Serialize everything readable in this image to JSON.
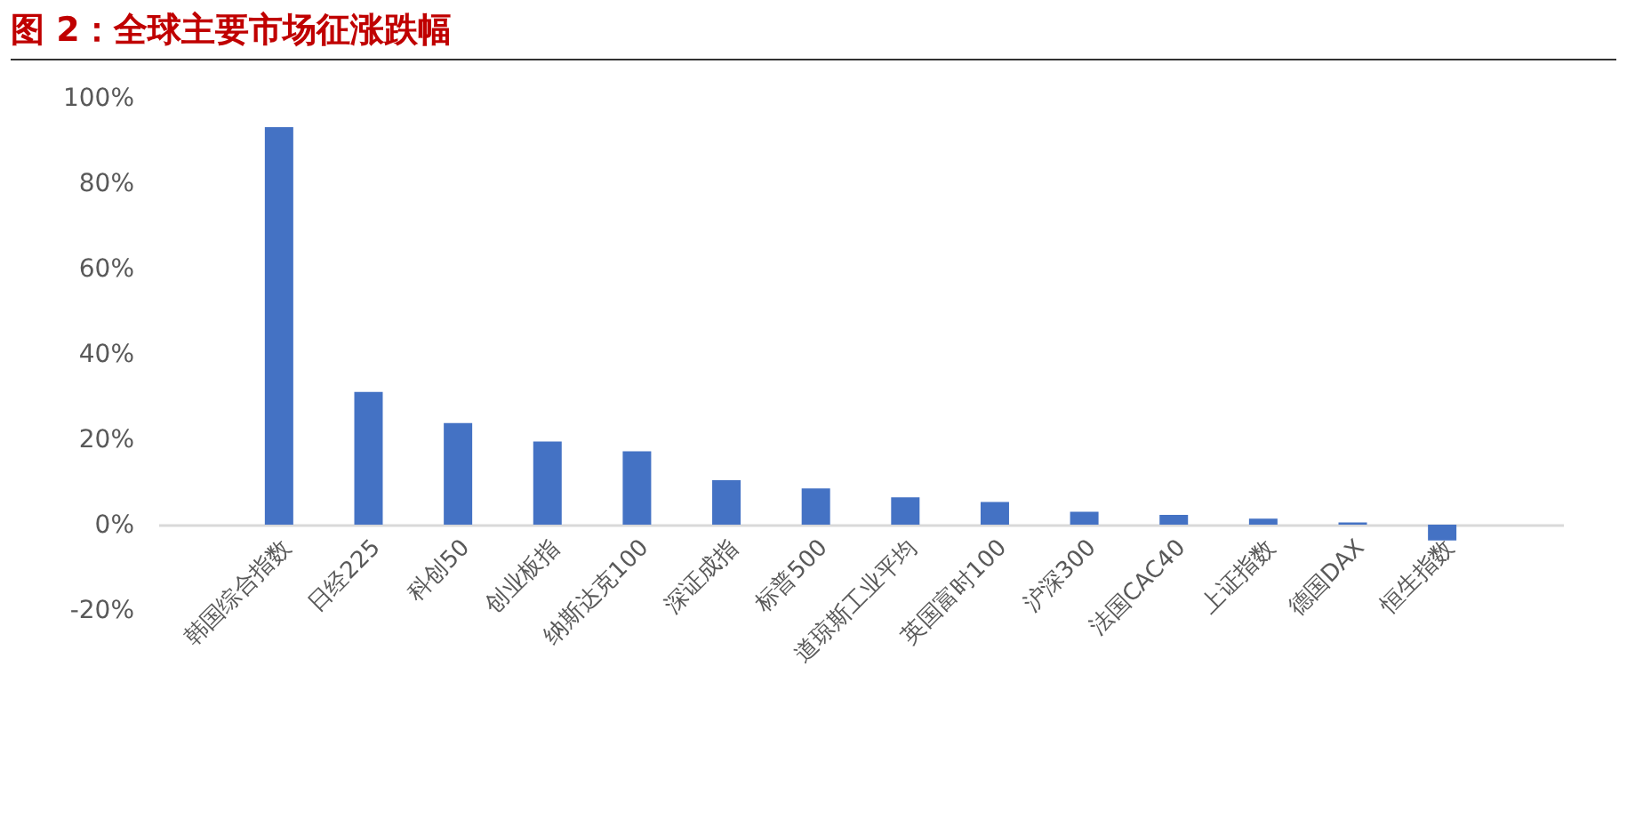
{
  "chart_data": {
    "type": "bar",
    "title": "图 2：全球主要市场征涨跌幅",
    "categories": [
      "韩国综合指数",
      "日经225",
      "科创50",
      "创业板指",
      "纳斯达克100",
      "深证成指",
      "标普500",
      "道琼斯工业平均",
      "英国富时100",
      "沪深300",
      "法国CAC40",
      "上证指数",
      "德国DAX",
      "恒生指数"
    ],
    "values": [
      93.1,
      31.1,
      23.8,
      19.5,
      17.2,
      10.4,
      8.5,
      6.4,
      5.3,
      3.0,
      2.3,
      1.4,
      0.5,
      -3.7
    ],
    "color": "#4472c4",
    "ylim": [
      -20,
      100
    ],
    "yticks": [
      {
        "value": -20,
        "label": "-20%"
      },
      {
        "value": 0,
        "label": "0%"
      },
      {
        "value": 20,
        "label": "20%"
      },
      {
        "value": 40,
        "label": "40%"
      },
      {
        "value": 60,
        "label": "60%"
      },
      {
        "value": 80,
        "label": "80%"
      },
      {
        "value": 100,
        "label": "100%"
      }
    ],
    "grid": false
  }
}
